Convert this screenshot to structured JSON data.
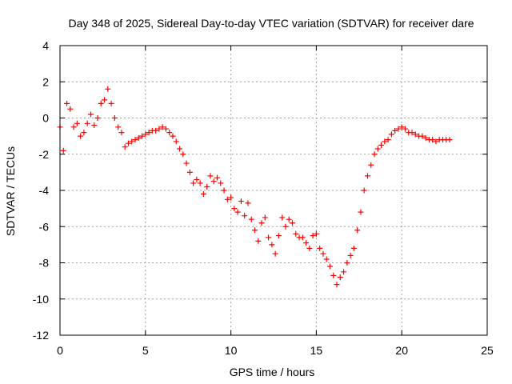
{
  "chart_data": {
    "type": "scatter",
    "title": "Day 348 of 2025, Sidereal Day-to-day VTEC variation (SDTVAR) for receiver dare",
    "xlabel": "GPS time / hours",
    "ylabel": "SDTVAR / TECUs",
    "xlim": [
      0,
      25
    ],
    "ylim": [
      -12,
      4
    ],
    "xticks": [
      0,
      5,
      10,
      15,
      20,
      25
    ],
    "yticks": [
      -12,
      -10,
      -8,
      -6,
      -4,
      -2,
      0,
      2,
      4
    ],
    "grid": true,
    "marker": "plus",
    "series": [
      {
        "name": "SDTVAR",
        "color": "#ff0000",
        "x": [
          0.0,
          0.2,
          0.4,
          0.6,
          0.8,
          1.0,
          1.2,
          1.4,
          1.6,
          1.8,
          2.0,
          2.2,
          2.4,
          2.6,
          2.8,
          3.0,
          3.2,
          3.4,
          3.6,
          3.8,
          4.0,
          4.2,
          4.4,
          4.6,
          4.8,
          5.0,
          5.2,
          5.4,
          5.6,
          5.8,
          6.0,
          6.2,
          6.4,
          6.6,
          6.8,
          7.0,
          7.2,
          7.4,
          7.6,
          7.8,
          8.0,
          8.2,
          8.4,
          8.6,
          8.8,
          9.0,
          9.2,
          9.4,
          9.6,
          9.8,
          10.0,
          10.2,
          10.4,
          10.6,
          10.8,
          11.0,
          11.2,
          11.4,
          11.6,
          11.8,
          12.0,
          12.2,
          12.4,
          12.6,
          12.8,
          13.0,
          13.2,
          13.4,
          13.6,
          13.8,
          14.0,
          14.2,
          14.4,
          14.6,
          14.8,
          15.0,
          15.2,
          15.4,
          15.6,
          15.8,
          16.0,
          16.2,
          16.4,
          16.6,
          16.8,
          17.0,
          17.2,
          17.4,
          17.6,
          17.8,
          18.0,
          18.2,
          18.4,
          18.6,
          18.8,
          19.0,
          19.2,
          19.4,
          19.6,
          19.8,
          20.0,
          20.2,
          20.4,
          20.6,
          20.8,
          21.0,
          21.2,
          21.4,
          21.6,
          21.8,
          22.0,
          22.2,
          22.4,
          22.6,
          22.8
        ],
        "y": [
          -0.5,
          -1.8,
          0.8,
          0.5,
          -0.5,
          -0.3,
          -1.0,
          -0.8,
          -0.3,
          0.2,
          -0.4,
          0.0,
          0.8,
          1.0,
          1.6,
          0.8,
          0.0,
          -0.5,
          -0.8,
          -1.6,
          -1.4,
          -1.3,
          -1.2,
          -1.1,
          -1.0,
          -0.9,
          -0.8,
          -0.7,
          -0.7,
          -0.6,
          -0.5,
          -0.6,
          -0.8,
          -1.0,
          -1.3,
          -1.7,
          -2.0,
          -2.5,
          -3.0,
          -3.6,
          -3.4,
          -3.6,
          -4.2,
          -3.8,
          -3.2,
          -3.5,
          -3.3,
          -3.6,
          -4.0,
          -4.5,
          -4.4,
          -5.0,
          -5.2,
          -4.6,
          -5.4,
          -4.7,
          -5.6,
          -6.2,
          -6.8,
          -5.8,
          -5.5,
          -6.6,
          -7.0,
          -7.5,
          -6.5,
          -5.5,
          -6.0,
          -5.6,
          -5.8,
          -6.4,
          -6.6,
          -6.6,
          -6.9,
          -7.2,
          -6.5,
          -6.4,
          -7.2,
          -7.5,
          -7.8,
          -8.2,
          -8.7,
          -9.2,
          -8.8,
          -8.5,
          -8.0,
          -7.6,
          -7.2,
          -6.2,
          -5.2,
          -4.0,
          -3.2,
          -2.6,
          -2.0,
          -1.7,
          -1.5,
          -1.3,
          -1.2,
          -0.9,
          -0.7,
          -0.6,
          -0.5,
          -0.6,
          -0.8,
          -0.8,
          -0.9,
          -1.0,
          -1.0,
          -1.1,
          -1.2,
          -1.2,
          -1.3,
          -1.2,
          -1.2,
          -1.2,
          -1.2
        ]
      }
    ]
  }
}
